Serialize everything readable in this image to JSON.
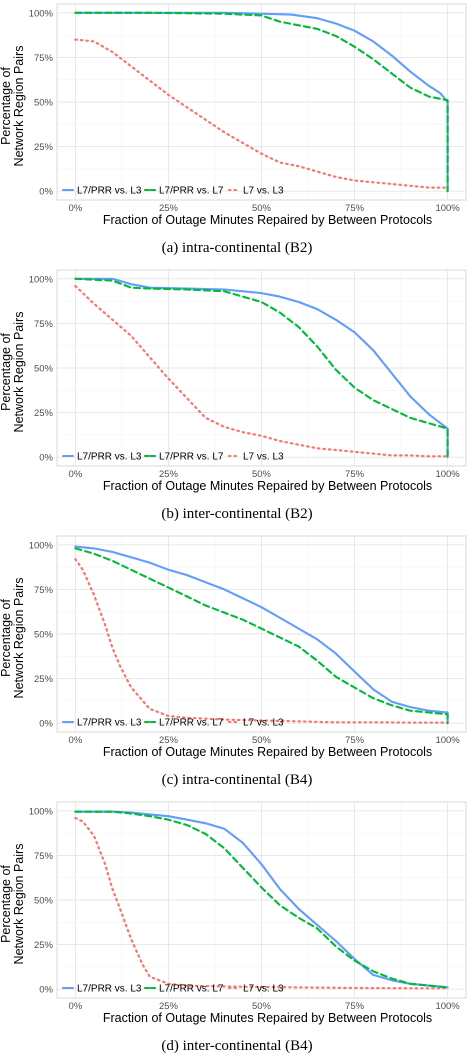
{
  "chart_data": [
    {
      "type": "line",
      "caption": "(a) intra-continental (B2)",
      "xlabel": "Fraction of Outage Minutes Repaired by Between Protocols",
      "ylabel": [
        "Percentage of",
        "Network Region Pairs"
      ],
      "xlim": [
        0,
        100
      ],
      "ylim": [
        0,
        100
      ],
      "x_ticks": [
        "0%",
        "25%",
        "50%",
        "75%",
        "100%"
      ],
      "y_ticks": [
        "0%",
        "25%",
        "50%",
        "75%",
        "100%"
      ],
      "grid": true,
      "legend_position": "bottom-left",
      "series": [
        {
          "name": "L7/PRR vs. L3",
          "color": "#619CFF",
          "style": "solid",
          "x": [
            0,
            20,
            40,
            50,
            58,
            65,
            70,
            75,
            80,
            85,
            90,
            95,
            98,
            100,
            100
          ],
          "y": [
            100,
            100,
            100,
            99.5,
            99,
            97,
            94,
            90,
            84,
            76,
            67,
            59,
            55,
            50,
            0
          ]
        },
        {
          "name": "L7/PRR vs. L7",
          "color": "#00BA38",
          "style": "dashed",
          "x": [
            0,
            20,
            40,
            50,
            55,
            60,
            65,
            70,
            75,
            80,
            85,
            90,
            95,
            100,
            100
          ],
          "y": [
            100,
            100,
            99.5,
            98.5,
            95,
            93,
            91,
            87,
            81,
            74,
            66,
            58,
            53,
            51,
            0
          ]
        },
        {
          "name": "L7 vs. L3",
          "color": "#F8766D",
          "style": "dotted",
          "x": [
            0,
            5,
            10,
            15,
            20,
            25,
            30,
            35,
            40,
            45,
            50,
            55,
            60,
            65,
            70,
            75,
            80,
            85,
            90,
            95,
            100
          ],
          "y": [
            85,
            84,
            78,
            70,
            62,
            54,
            47,
            40,
            33,
            27,
            21,
            16,
            14,
            11,
            8,
            6,
            5,
            4,
            3,
            2,
            2
          ]
        }
      ]
    },
    {
      "type": "line",
      "caption": "(b) inter-continental (B2)",
      "xlabel": "Fraction of Outage Minutes Repaired by Between Protocols",
      "ylabel": [
        "Percentage of",
        "Network Region Pairs"
      ],
      "xlim": [
        0,
        100
      ],
      "ylim": [
        0,
        100
      ],
      "x_ticks": [
        "0%",
        "25%",
        "50%",
        "75%",
        "100%"
      ],
      "y_ticks": [
        "0%",
        "25%",
        "50%",
        "75%",
        "100%"
      ],
      "grid": true,
      "legend_position": "bottom-left",
      "series": [
        {
          "name": "L7/PRR vs. L3",
          "color": "#619CFF",
          "style": "solid",
          "x": [
            0,
            10,
            15,
            20,
            30,
            40,
            50,
            55,
            60,
            65,
            70,
            75,
            80,
            85,
            90,
            95,
            100,
            100
          ],
          "y": [
            100,
            100,
            97,
            95,
            94.5,
            94,
            92,
            90,
            87,
            83,
            77,
            70,
            60,
            47,
            34,
            24,
            16,
            0
          ]
        },
        {
          "name": "L7/PRR vs. L7",
          "color": "#00BA38",
          "style": "dashed",
          "x": [
            0,
            10,
            15,
            20,
            30,
            40,
            45,
            50,
            55,
            60,
            65,
            70,
            75,
            80,
            85,
            90,
            95,
            100,
            100
          ],
          "y": [
            100,
            99,
            95,
            94.5,
            94,
            93,
            90,
            87,
            81,
            73,
            62,
            49,
            39,
            32,
            27,
            22,
            19,
            16,
            0
          ]
        },
        {
          "name": "L7 vs. L3",
          "color": "#F8766D",
          "style": "dotted",
          "x": [
            0,
            5,
            10,
            15,
            20,
            25,
            30,
            35,
            40,
            45,
            50,
            55,
            60,
            65,
            70,
            75,
            80,
            85,
            90,
            95,
            100
          ],
          "y": [
            96,
            86,
            77,
            68,
            56,
            44,
            33,
            22,
            17,
            14,
            12,
            9,
            7,
            5,
            4,
            3,
            2,
            1,
            1,
            0.5,
            0.5
          ]
        }
      ]
    },
    {
      "type": "line",
      "caption": "(c) intra-continental (B4)",
      "xlabel": "Fraction of Outage Minutes Repaired by Between Protocols",
      "ylabel": [
        "Percentage of",
        "Network Region Pairs"
      ],
      "xlim": [
        0,
        100
      ],
      "ylim": [
        0,
        100
      ],
      "x_ticks": [
        "0%",
        "25%",
        "50%",
        "75%",
        "100%"
      ],
      "y_ticks": [
        "0%",
        "25%",
        "50%",
        "75%",
        "100%"
      ],
      "grid": true,
      "legend_position": "bottom-left",
      "series": [
        {
          "name": "L7/PRR vs. L3",
          "color": "#619CFF",
          "style": "solid",
          "x": [
            0,
            5,
            10,
            15,
            20,
            25,
            30,
            35,
            40,
            45,
            50,
            55,
            60,
            65,
            70,
            75,
            80,
            85,
            90,
            95,
            100,
            100
          ],
          "y": [
            99,
            98,
            96,
            93,
            90,
            86,
            83,
            79,
            75,
            70,
            65,
            59,
            53,
            47,
            39,
            29,
            19,
            12,
            9,
            7,
            6,
            0
          ]
        },
        {
          "name": "L7/PRR vs. L7",
          "color": "#00BA38",
          "style": "dashed",
          "x": [
            0,
            5,
            10,
            15,
            20,
            25,
            30,
            35,
            40,
            45,
            50,
            55,
            60,
            65,
            70,
            75,
            80,
            85,
            90,
            95,
            100,
            100
          ],
          "y": [
            98,
            95,
            91,
            86,
            81,
            76,
            71,
            66,
            62,
            58,
            53,
            48,
            43,
            35,
            26,
            20,
            14,
            10,
            7,
            6,
            5,
            0
          ]
        },
        {
          "name": "L7 vs. L3",
          "color": "#F8766D",
          "style": "dotted",
          "x": [
            0,
            2,
            5,
            8,
            10,
            12,
            15,
            20,
            25,
            30,
            35,
            40,
            50,
            60,
            70,
            80,
            90,
            100
          ],
          "y": [
            92,
            86,
            72,
            55,
            42,
            32,
            20,
            8,
            4,
            3,
            2.5,
            2,
            1.5,
            1,
            0.5,
            0.5,
            0.3,
            0.3
          ]
        }
      ]
    },
    {
      "type": "line",
      "caption": "(d) inter-continental (B4)",
      "xlabel": "Fraction of Outage Minutes Repaired by Between Protocols",
      "ylabel": [
        "Percentage of",
        "Network Region Pairs"
      ],
      "xlim": [
        0,
        100
      ],
      "ylim": [
        0,
        100
      ],
      "x_ticks": [
        "0%",
        "25%",
        "50%",
        "75%",
        "100%"
      ],
      "y_ticks": [
        "0%",
        "25%",
        "50%",
        "75%",
        "100%"
      ],
      "grid": true,
      "legend_position": "bottom-left",
      "series": [
        {
          "name": "L7/PRR vs. L3",
          "color": "#619CFF",
          "style": "solid",
          "x": [
            0,
            10,
            15,
            20,
            25,
            30,
            35,
            40,
            45,
            50,
            55,
            60,
            65,
            70,
            75,
            80,
            85,
            90,
            95,
            100
          ],
          "y": [
            99.5,
            99.5,
            99,
            98,
            97,
            95,
            93,
            90,
            82,
            70,
            56,
            45,
            36,
            27,
            17,
            8,
            5,
            3,
            2,
            1
          ]
        },
        {
          "name": "L7/PRR vs. L7",
          "color": "#00BA38",
          "style": "dashed",
          "x": [
            0,
            10,
            15,
            20,
            25,
            30,
            35,
            40,
            45,
            50,
            55,
            60,
            65,
            70,
            75,
            80,
            85,
            90,
            95,
            100
          ],
          "y": [
            99.5,
            99.5,
            98.5,
            97,
            95,
            92,
            87,
            79,
            68,
            57,
            47,
            40,
            34,
            24,
            16,
            10,
            6,
            3,
            2,
            1
          ]
        },
        {
          "name": "L7 vs. L3",
          "color": "#F8766D",
          "style": "dotted",
          "x": [
            0,
            2,
            5,
            8,
            10,
            12,
            15,
            18,
            20,
            25,
            30,
            40,
            50,
            60,
            70,
            80,
            90,
            100
          ],
          "y": [
            96,
            94,
            86,
            70,
            56,
            45,
            28,
            14,
            7,
            3,
            2,
            1.5,
            1.2,
            1,
            0.8,
            0.6,
            0.5,
            0.5
          ]
        }
      ]
    }
  ]
}
